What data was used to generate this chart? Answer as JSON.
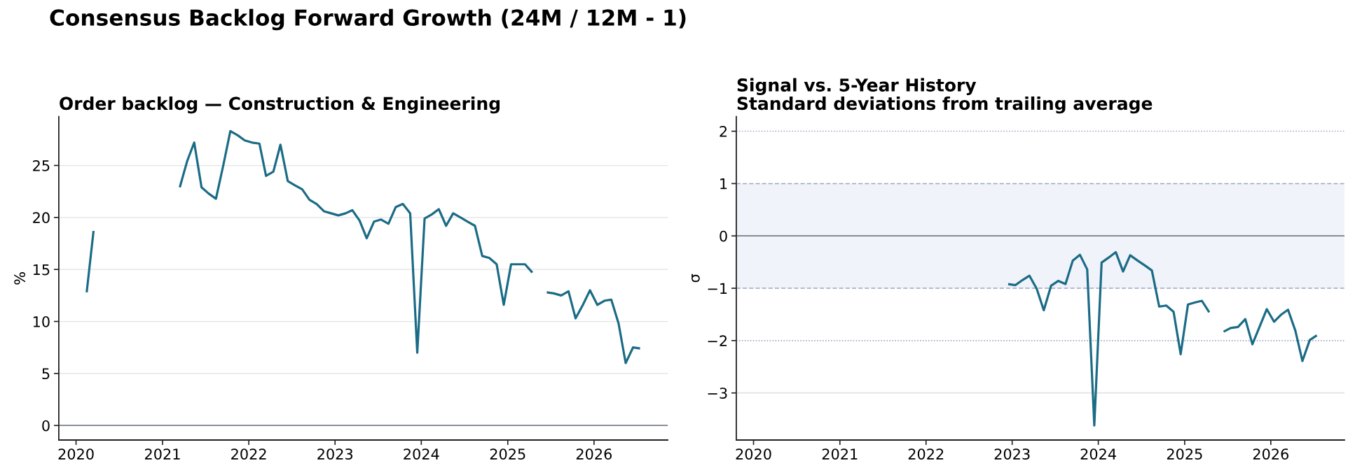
{
  "chart_data": [
    {
      "type": "line",
      "title": "Consensus Backlog Forward Growth (24M / 12M - 1)",
      "subtitle": "Order backlog — Construction & Engineering",
      "ylabel": "%",
      "x": [
        "2020-02-15",
        "2020-03-15",
        "2020-04-15",
        "2020-05-15",
        "2020-06-15",
        "2020-07-15",
        "2020-08-15",
        "2020-09-15",
        "2020-10-15",
        "2020-11-15",
        "2020-12-15",
        "2021-01-15",
        "2021-02-15",
        "2021-03-15",
        "2021-04-15",
        "2021-05-15",
        "2021-06-15",
        "2021-07-15",
        "2021-08-15",
        "2021-09-15",
        "2021-10-15",
        "2021-11-15",
        "2021-12-15",
        "2022-01-15",
        "2022-02-15",
        "2022-03-15",
        "2022-04-15",
        "2022-05-15",
        "2022-06-15",
        "2022-07-15",
        "2022-08-15",
        "2022-09-15",
        "2022-10-15",
        "2022-11-15",
        "2022-12-15",
        "2023-01-15",
        "2023-02-15",
        "2023-03-15",
        "2023-04-15",
        "2023-05-15",
        "2023-06-15",
        "2023-07-15",
        "2023-08-15",
        "2023-09-15",
        "2023-10-15",
        "2023-11-15",
        "2023-12-15",
        "2024-01-15",
        "2024-02-15",
        "2024-03-15",
        "2024-04-15",
        "2024-05-15",
        "2024-06-15",
        "2024-07-15",
        "2024-08-15",
        "2024-09-15",
        "2024-10-15",
        "2024-11-15",
        "2024-12-15",
        "2025-01-15",
        "2025-02-15",
        "2025-03-15",
        "2025-04-15",
        "2025-05-15",
        "2025-06-15",
        "2025-07-15",
        "2025-08-15",
        "2025-09-15",
        "2025-10-15",
        "2025-11-15",
        "2025-12-15",
        "2026-01-15",
        "2026-02-15",
        "2026-03-15",
        "2026-04-15",
        "2026-05-15",
        "2026-06-15",
        "2026-07-15"
      ],
      "series": [
        {
          "color": "#1b6b86",
          "values": [
            12.8,
            18.7,
            null,
            null,
            null,
            null,
            null,
            null,
            null,
            null,
            null,
            null,
            null,
            22.9,
            25.4,
            27.2,
            22.9,
            22.3,
            21.8,
            25.0,
            28.3,
            27.9,
            27.4,
            27.2,
            27.1,
            24.0,
            24.4,
            27.0,
            23.5,
            23.1,
            22.7,
            21.7,
            21.3,
            20.6,
            20.4,
            20.2,
            20.4,
            20.7,
            19.7,
            18.0,
            19.6,
            19.8,
            19.4,
            21.0,
            21.3,
            20.4,
            7.0,
            19.9,
            20.3,
            20.8,
            19.2,
            20.4,
            20.0,
            19.6,
            19.2,
            16.3,
            16.1,
            15.5,
            11.6,
            15.5,
            15.5,
            15.5,
            14.7,
            null,
            12.8,
            12.7,
            12.5,
            12.9,
            10.3,
            11.6,
            13.0,
            11.6,
            12.0,
            12.1,
            9.8,
            6.0,
            7.5,
            7.4
          ]
        }
      ],
      "xlim": [
        "2019-10-20",
        "2026-11-09"
      ],
      "xticks": [
        "2020",
        "2021",
        "2022",
        "2023",
        "2024",
        "2025",
        "2026"
      ],
      "ylim": [
        -1.4,
        29.7
      ],
      "yticks": [
        0,
        5,
        10,
        15,
        20,
        25
      ],
      "grid": "y",
      "ref_lines": [
        {
          "axis": "y",
          "value": 0,
          "color": "#787d87",
          "line_style": "solid"
        }
      ]
    },
    {
      "type": "line",
      "title": "Signal vs. 5-Year History\nStandard deviations from trailing average",
      "ylabel": "σ",
      "x": [
        "2022-12-15",
        "2023-01-15",
        "2023-02-15",
        "2023-03-15",
        "2023-04-15",
        "2023-05-15",
        "2023-06-15",
        "2023-07-15",
        "2023-08-15",
        "2023-09-15",
        "2023-10-15",
        "2023-11-15",
        "2023-12-15",
        "2024-01-15",
        "2024-02-15",
        "2024-03-15",
        "2024-04-15",
        "2024-05-15",
        "2024-06-15",
        "2024-07-15",
        "2024-08-15",
        "2024-09-15",
        "2024-10-15",
        "2024-11-15",
        "2024-12-15",
        "2025-01-15",
        "2025-02-15",
        "2025-03-15",
        "2025-04-15",
        "2025-05-15",
        "2025-06-15",
        "2025-07-15",
        "2025-08-15",
        "2025-09-15",
        "2025-10-15",
        "2025-11-15",
        "2025-12-15",
        "2026-01-15",
        "2026-02-15",
        "2026-03-15",
        "2026-04-15",
        "2026-05-15",
        "2026-06-15",
        "2026-07-15"
      ],
      "series": [
        {
          "color": "#1b6b86",
          "values": [
            -0.92,
            -0.94,
            -0.84,
            -0.76,
            -1.01,
            -1.42,
            -0.95,
            -0.86,
            -0.92,
            -0.47,
            -0.36,
            -0.64,
            -3.62,
            -0.51,
            -0.41,
            -0.31,
            -0.68,
            -0.37,
            -0.47,
            -0.56,
            -0.66,
            -1.35,
            -1.33,
            -1.45,
            -2.26,
            -1.31,
            -1.27,
            -1.24,
            -1.46,
            null,
            -1.83,
            -1.76,
            -1.74,
            -1.59,
            -2.07,
            -1.73,
            -1.4,
            -1.64,
            -1.5,
            -1.41,
            -1.81,
            -2.39,
            -1.99,
            -1.9
          ]
        }
      ],
      "xlim": [
        "2019-10-20",
        "2026-11-09"
      ],
      "xticks": [
        "2020",
        "2021",
        "2022",
        "2023",
        "2024",
        "2025",
        "2026"
      ],
      "ylim": [
        -3.9,
        2.28
      ],
      "yticks": [
        -3,
        -2,
        -1,
        0,
        1,
        2
      ],
      "bands": [
        {
          "axis": "y",
          "from": -1,
          "to": 1,
          "color": "#f0f3f9"
        }
      ],
      "ref_lines": [
        {
          "axis": "y",
          "value": 0,
          "color": "#787d87",
          "line_style": "solid"
        },
        {
          "axis": "y",
          "value": 1,
          "color": "#9ba6bf",
          "line_style": "dashed"
        },
        {
          "axis": "y",
          "value": -1,
          "color": "#9ba6bf",
          "line_style": "dashed"
        },
        {
          "axis": "y",
          "value": 2,
          "color": "#9ba6bf",
          "line_style": "dotted"
        },
        {
          "axis": "y",
          "value": -2,
          "color": "#9ba6bf",
          "line_style": "dotted"
        },
        {
          "axis": "y",
          "value": -3,
          "color": "#e2e2e2",
          "line_style": "solid"
        }
      ]
    }
  ]
}
